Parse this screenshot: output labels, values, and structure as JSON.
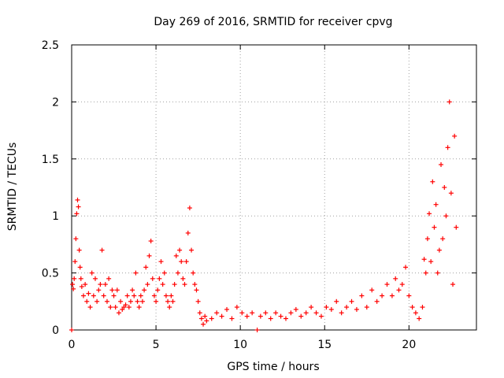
{
  "chart_data": {
    "type": "scatter",
    "title": "Day 269 of 2016, SRMTID for receiver cpvg",
    "xlabel": "GPS time / hours",
    "ylabel": "SRMTID / TECUs",
    "xlim": [
      0,
      24
    ],
    "ylim": [
      0,
      2.5
    ],
    "x_ticks": [
      0,
      5,
      10,
      15,
      20
    ],
    "x_tick_labels": [
      "0",
      "5",
      "10",
      "15",
      "20"
    ],
    "y_ticks": [
      0,
      0.5,
      1,
      1.5,
      2,
      2.5
    ],
    "y_tick_labels": [
      "0",
      "0.5",
      "1",
      "1.5",
      "2",
      "2.5"
    ],
    "grid": true,
    "marker": "+",
    "series": [
      {
        "name": "SRMTID",
        "color": "#ff0000",
        "x": [
          0.0,
          0.05,
          0.1,
          0.15,
          0.2,
          0.25,
          0.3,
          0.35,
          0.4,
          0.45,
          0.5,
          0.55,
          0.6,
          0.7,
          0.8,
          0.9,
          1.0,
          1.1,
          1.2,
          1.3,
          1.4,
          1.5,
          1.6,
          1.7,
          1.8,
          1.9,
          2.0,
          2.1,
          2.2,
          2.3,
          2.4,
          2.5,
          2.6,
          2.7,
          2.8,
          2.9,
          3.0,
          3.1,
          3.2,
          3.3,
          3.4,
          3.5,
          3.6,
          3.7,
          3.8,
          3.9,
          4.0,
          4.1,
          4.2,
          4.3,
          4.4,
          4.5,
          4.6,
          4.7,
          4.8,
          4.9,
          5.0,
          5.1,
          5.2,
          5.3,
          5.4,
          5.5,
          5.6,
          5.7,
          5.8,
          5.9,
          6.0,
          6.1,
          6.2,
          6.3,
          6.4,
          6.5,
          6.6,
          6.7,
          6.8,
          6.9,
          7.0,
          7.1,
          7.2,
          7.3,
          7.4,
          7.5,
          7.6,
          7.7,
          7.8,
          7.9,
          8.0,
          8.3,
          8.6,
          8.9,
          9.2,
          9.5,
          9.8,
          10.1,
          10.4,
          10.7,
          11.0,
          11.2,
          11.5,
          11.8,
          12.1,
          12.4,
          12.7,
          13.0,
          13.3,
          13.6,
          13.9,
          14.2,
          14.5,
          14.8,
          15.1,
          15.4,
          15.7,
          16.0,
          16.3,
          16.6,
          16.9,
          17.2,
          17.5,
          17.8,
          18.1,
          18.4,
          18.7,
          19.0,
          19.2,
          19.4,
          19.6,
          19.8,
          20.0,
          20.2,
          20.4,
          20.6,
          20.8,
          20.9,
          21.0,
          21.1,
          21.2,
          21.3,
          21.4,
          21.5,
          21.6,
          21.7,
          21.8,
          21.9,
          22.0,
          22.1,
          22.2,
          22.3,
          22.4,
          22.5,
          22.6,
          22.7,
          22.8
        ],
        "y": [
          0.0,
          0.4,
          0.36,
          0.45,
          0.6,
          0.8,
          1.02,
          1.14,
          1.08,
          0.7,
          0.55,
          0.45,
          0.38,
          0.3,
          0.4,
          0.25,
          0.32,
          0.2,
          0.5,
          0.3,
          0.45,
          0.25,
          0.35,
          0.4,
          0.7,
          0.3,
          0.4,
          0.25,
          0.45,
          0.2,
          0.35,
          0.3,
          0.2,
          0.35,
          0.15,
          0.25,
          0.18,
          0.2,
          0.22,
          0.3,
          0.2,
          0.25,
          0.35,
          0.3,
          0.5,
          0.25,
          0.2,
          0.3,
          0.25,
          0.35,
          0.55,
          0.4,
          0.65,
          0.78,
          0.45,
          0.3,
          0.25,
          0.35,
          0.45,
          0.6,
          0.4,
          0.5,
          0.3,
          0.25,
          0.2,
          0.3,
          0.25,
          0.4,
          0.65,
          0.5,
          0.7,
          0.6,
          0.45,
          0.4,
          0.6,
          0.85,
          1.07,
          0.7,
          0.5,
          0.4,
          0.35,
          0.25,
          0.15,
          0.1,
          0.05,
          0.12,
          0.08,
          0.1,
          0.15,
          0.12,
          0.18,
          0.1,
          0.2,
          0.15,
          0.12,
          0.15,
          0.0,
          0.12,
          0.15,
          0.1,
          0.15,
          0.12,
          0.1,
          0.15,
          0.18,
          0.12,
          0.15,
          0.2,
          0.15,
          0.12,
          0.2,
          0.18,
          0.25,
          0.15,
          0.2,
          0.25,
          0.18,
          0.3,
          0.2,
          0.35,
          0.25,
          0.3,
          0.4,
          0.3,
          0.45,
          0.35,
          0.4,
          0.55,
          0.3,
          0.2,
          0.15,
          0.1,
          0.2,
          0.62,
          0.5,
          0.8,
          1.02,
          0.6,
          1.3,
          0.9,
          1.1,
          0.5,
          0.7,
          1.45,
          0.8,
          1.25,
          1.0,
          1.6,
          2.0,
          1.2,
          0.4,
          1.7,
          0.9
        ]
      }
    ]
  }
}
